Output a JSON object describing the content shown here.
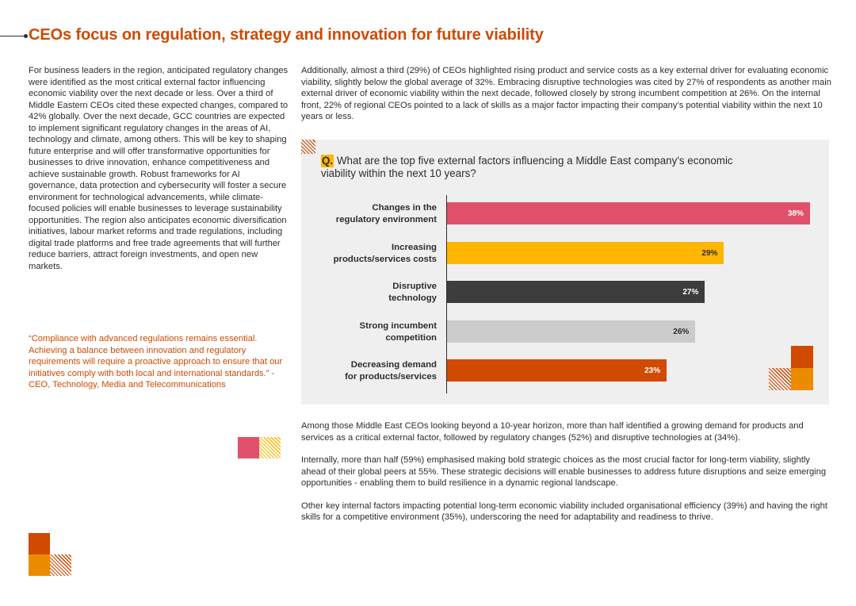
{
  "header": {
    "title": "CEOs focus on regulation, strategy and innovation for future viability"
  },
  "left_column": {
    "paragraph": "For business leaders in the region, anticipated regulatory changes were identified as the most critical external factor influencing economic viability over the next decade or less. Over a third of Middle Eastern CEOs cited these expected changes, compared to 42% globally. Over the next decade, GCC countries are expected to implement significant regulatory changes in the areas of AI, technology and climate, among others. This will be key to shaping future enterprise and will offer transformative opportunities for businesses to drive innovation, enhance competitiveness and achieve sustainable growth. Robust frameworks for AI governance, data protection and cybersecurity will foster a secure environment for technological advancements, while climate-focused policies will enable businesses to leverage sustainability opportunities. The region also anticipates economic diversification initiatives, labour market reforms and trade regulations, including digital trade platforms and free trade agreements that will further reduce barriers, attract foreign investments, and open new markets.",
    "quote": "“Compliance with advanced regulations remains essential. Achieving a balance between innovation and regulatory requirements will require a proactive approach to ensure that our initiatives comply with both local and international standards.” - CEO, Technology, Media and Telecommunications"
  },
  "right_column": {
    "intro": "Additionally, almost a third (29%) of CEOs highlighted rising product and service costs as a key external driver for evaluating economic viability, slightly below the global average of 32%. Embracing disruptive technologies was cited by 27% of respondents as another main external driver of economic viability within the next decade, followed closely by strong incumbent competition at 26%. On the internal front, 22% of regional CEOs pointed to a lack of skills as a major factor impacting their company’s potential viability within the next 10 years or less.",
    "paragraphs": [
      "Among those Middle East CEOs looking beyond a 10-year horizon, more than half identified a growing demand for products and services as a critical external factor, followed by regulatory changes (52%) and disruptive technologies at (34%).",
      "Internally, more than half (59%) emphasised making bold strategic choices as the most crucial factor for long-term viability, slightly ahead of their global peers at 55%. These strategic decisions will enable businesses to address future disruptions and seize emerging opportunities - enabling them to build resilience in a dynamic regional landscape.",
      "Other key internal factors impacting potential long-term economic viability included organisational efficiency (39%) and having the right skills for a competitive environment (35%), underscoring the need for adaptability and readiness to thrive."
    ]
  },
  "chart_question": {
    "marker": "Q.",
    "text": " What are the top five external factors influencing a Middle East company's economic viability within the next 10 years?"
  },
  "chart_data": {
    "type": "bar",
    "orientation": "horizontal",
    "title": "What are the top five external factors influencing a Middle East company's economic viability within the next 10 years?",
    "categories": [
      "Changes in the regulatory environment",
      "Increasing products/services costs",
      "Disruptive technology",
      "Strong incumbent competition",
      "Decreasing demand for products/services"
    ],
    "category_lines": [
      [
        "Changes in the",
        "regulatory environment"
      ],
      [
        "Increasing",
        "products/services costs"
      ],
      [
        "Disruptive",
        "technology"
      ],
      [
        "Strong incumbent",
        "competition"
      ],
      [
        "Decreasing demand",
        "for products/services"
      ]
    ],
    "values": [
      38,
      29,
      27,
      26,
      23
    ],
    "value_labels": [
      "38%",
      "29%",
      "27%",
      "26%",
      "23%"
    ],
    "unit": "%",
    "xlim": [
      0,
      40
    ],
    "colors": [
      "#e0506a",
      "#ffb600",
      "#3d3d3d",
      "#cbcbcb",
      "#d04a02"
    ],
    "label_colors": [
      "#ffffff",
      "#2d2d2d",
      "#ffffff",
      "#2d2d2d",
      "#ffffff"
    ],
    "grid": false
  },
  "decor_colors": {
    "orange": "#d04a02",
    "amber": "#eb8c00",
    "rose": "#e0506a",
    "yellow": "#ffb600"
  }
}
